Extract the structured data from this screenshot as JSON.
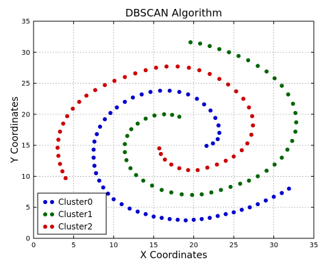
{
  "chart_data": {
    "type": "scatter",
    "title": "DBSCAN Algorithm",
    "xlabel": "X Coordinates",
    "ylabel": "Y Coordinates",
    "xlim": [
      0,
      35
    ],
    "ylim": [
      0,
      35
    ],
    "xticks": [
      0,
      5,
      10,
      15,
      20,
      25,
      30,
      35
    ],
    "yticks": [
      0,
      5,
      10,
      15,
      20,
      25,
      30,
      35
    ],
    "grid": true,
    "legend_position": "bottom-left",
    "series": [
      {
        "name": "Cluster0",
        "color": "#0000cc",
        "points": [
          [
            31.9,
            8.0
          ],
          [
            31.0,
            7.3
          ],
          [
            30.0,
            6.7
          ],
          [
            29.0,
            6.1
          ],
          [
            28.0,
            5.5
          ],
          [
            27.0,
            5.0
          ],
          [
            26.0,
            4.6
          ],
          [
            25.0,
            4.2
          ],
          [
            24.0,
            3.9
          ],
          [
            23.0,
            3.6
          ],
          [
            22.0,
            3.3
          ],
          [
            21.0,
            3.1
          ],
          [
            20.0,
            3.0
          ],
          [
            19.0,
            2.9
          ],
          [
            18.0,
            3.0
          ],
          [
            17.0,
            3.1
          ],
          [
            16.0,
            3.3
          ],
          [
            15.0,
            3.5
          ],
          [
            14.0,
            3.9
          ],
          [
            13.0,
            4.3
          ],
          [
            12.0,
            4.8
          ],
          [
            11.0,
            5.5
          ],
          [
            10.0,
            6.3
          ],
          [
            9.3,
            7.2
          ],
          [
            8.7,
            8.2
          ],
          [
            8.2,
            9.3
          ],
          [
            7.8,
            10.5
          ],
          [
            7.6,
            11.7
          ],
          [
            7.5,
            13.0
          ],
          [
            7.5,
            14.3
          ],
          [
            7.6,
            15.6
          ],
          [
            7.9,
            16.8
          ],
          [
            8.3,
            18.0
          ],
          [
            8.9,
            19.2
          ],
          [
            9.6,
            20.2
          ],
          [
            10.4,
            21.1
          ],
          [
            11.4,
            22.0
          ],
          [
            12.4,
            22.7
          ],
          [
            13.5,
            23.2
          ],
          [
            14.6,
            23.6
          ],
          [
            15.8,
            23.8
          ],
          [
            17.0,
            23.8
          ],
          [
            18.2,
            23.6
          ],
          [
            19.3,
            23.2
          ],
          [
            20.4,
            22.5
          ],
          [
            21.3,
            21.6
          ],
          [
            22.1,
            20.6
          ],
          [
            22.7,
            19.4
          ],
          [
            23.1,
            18.2
          ],
          [
            23.2,
            17.0
          ],
          [
            23.0,
            16.0
          ],
          [
            22.4,
            15.3
          ],
          [
            21.6,
            14.9
          ]
        ]
      },
      {
        "name": "Cluster1",
        "color": "#006600",
        "points": [
          [
            19.6,
            31.6
          ],
          [
            20.8,
            31.4
          ],
          [
            22.0,
            31.0
          ],
          [
            23.2,
            30.5
          ],
          [
            24.4,
            30.0
          ],
          [
            25.6,
            29.4
          ],
          [
            26.8,
            28.7
          ],
          [
            28.0,
            27.8
          ],
          [
            29.1,
            26.9
          ],
          [
            30.1,
            25.8
          ],
          [
            31.0,
            24.6
          ],
          [
            31.8,
            23.2
          ],
          [
            32.4,
            21.7
          ],
          [
            32.7,
            20.2
          ],
          [
            32.8,
            18.7
          ],
          [
            32.7,
            17.2
          ],
          [
            32.3,
            15.7
          ],
          [
            31.7,
            14.3
          ],
          [
            31.0,
            13.0
          ],
          [
            30.1,
            11.9
          ],
          [
            29.1,
            10.9
          ],
          [
            28.0,
            10.0
          ],
          [
            26.9,
            9.3
          ],
          [
            25.8,
            8.8
          ],
          [
            24.6,
            8.3
          ],
          [
            23.4,
            7.8
          ],
          [
            22.2,
            7.4
          ],
          [
            21.0,
            7.1
          ],
          [
            19.8,
            7.0
          ],
          [
            18.5,
            7.1
          ],
          [
            17.2,
            7.4
          ],
          [
            16.0,
            7.8
          ],
          [
            14.8,
            8.5
          ],
          [
            13.7,
            9.3
          ],
          [
            12.8,
            10.2
          ],
          [
            12.1,
            11.3
          ],
          [
            11.6,
            12.6
          ],
          [
            11.4,
            13.9
          ],
          [
            11.4,
            15.2
          ],
          [
            11.7,
            16.5
          ],
          [
            12.2,
            17.6
          ],
          [
            13.0,
            18.5
          ],
          [
            14.0,
            19.3
          ],
          [
            15.1,
            19.8
          ],
          [
            16.3,
            20.0
          ],
          [
            17.3,
            19.9
          ],
          [
            18.2,
            19.6
          ]
        ]
      },
      {
        "name": "Cluster2",
        "color": "#cc0000",
        "points": [
          [
            4.0,
            9.7
          ],
          [
            3.6,
            10.8
          ],
          [
            3.3,
            12.0
          ],
          [
            3.1,
            13.3
          ],
          [
            3.0,
            14.6
          ],
          [
            3.1,
            15.9
          ],
          [
            3.3,
            17.2
          ],
          [
            3.7,
            18.5
          ],
          [
            4.2,
            19.7
          ],
          [
            4.9,
            20.9
          ],
          [
            5.7,
            22.0
          ],
          [
            6.6,
            23.0
          ],
          [
            7.7,
            23.9
          ],
          [
            8.9,
            24.7
          ],
          [
            10.1,
            25.4
          ],
          [
            11.4,
            26.0
          ],
          [
            12.7,
            26.6
          ],
          [
            14.0,
            27.1
          ],
          [
            15.3,
            27.5
          ],
          [
            16.6,
            27.7
          ],
          [
            18.0,
            27.7
          ],
          [
            19.4,
            27.5
          ],
          [
            20.7,
            27.1
          ],
          [
            22.0,
            26.5
          ],
          [
            23.2,
            25.7
          ],
          [
            24.3,
            24.8
          ],
          [
            25.3,
            23.7
          ],
          [
            26.2,
            22.5
          ],
          [
            26.9,
            21.1
          ],
          [
            27.3,
            19.7
          ],
          [
            27.4,
            18.2
          ],
          [
            27.2,
            16.7
          ],
          [
            26.7,
            15.3
          ],
          [
            26.0,
            14.2
          ],
          [
            25.0,
            13.2
          ],
          [
            24.0,
            12.5
          ],
          [
            22.9,
            11.9
          ],
          [
            21.7,
            11.4
          ],
          [
            20.5,
            11.0
          ],
          [
            19.3,
            11.0
          ],
          [
            18.2,
            11.3
          ],
          [
            17.2,
            11.9
          ],
          [
            16.4,
            12.7
          ],
          [
            15.9,
            13.6
          ],
          [
            15.7,
            14.5
          ]
        ]
      }
    ]
  }
}
